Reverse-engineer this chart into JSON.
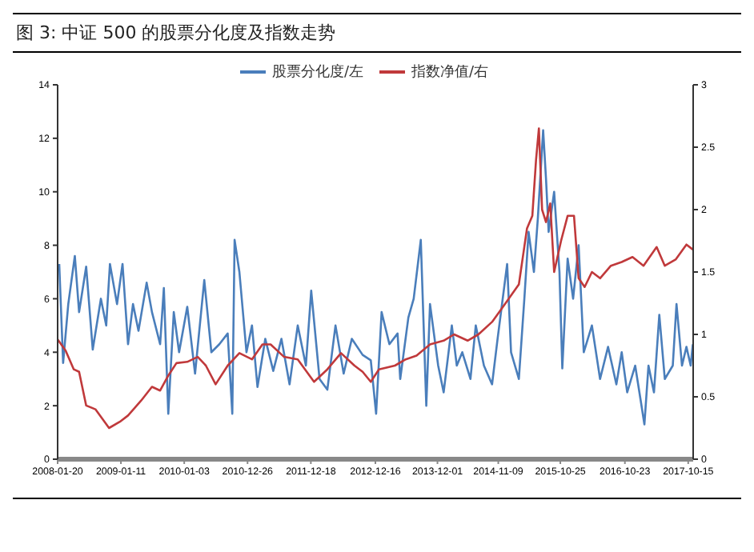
{
  "chart_data": {
    "type": "line",
    "title": "图 3:  中证 500 的股票分化度及指数走势",
    "legend": "top",
    "marker": "none",
    "line_style": "solid",
    "xlim": [
      "2008-01-20",
      "2017-11-12"
    ],
    "xticks": [
      "2008-01-20",
      "2009-01-11",
      "2010-01-03",
      "2010-12-26",
      "2011-12-18",
      "2012-12-16",
      "2013-12-01",
      "2014-11-09",
      "2015-10-25",
      "2016-10-23",
      "2017-10-15"
    ],
    "ylim": [
      0,
      14
    ],
    "yticks": [
      0,
      2,
      4,
      6,
      8,
      10,
      12,
      14
    ],
    "y2lim": [
      0,
      3
    ],
    "y2ticks": [
      0,
      0.5,
      1,
      1.5,
      2,
      2.5,
      3
    ],
    "series": [
      {
        "name": "股票分化度/左",
        "color": "#4a7ebb",
        "x": [
          "2008-01-29",
          "2008-02-20",
          "2008-03-20",
          "2008-04-26",
          "2008-05-20",
          "2008-06-29",
          "2008-08-05",
          "2008-09-20",
          "2008-10-20",
          "2008-11-10",
          "2008-12-20",
          "2009-01-20",
          "2009-02-20",
          "2009-03-20",
          "2009-04-20",
          "2009-06-05",
          "2009-07-05",
          "2009-08-20",
          "2009-09-10",
          "2009-10-05",
          "2009-11-05",
          "2009-12-05",
          "2010-01-20",
          "2010-03-05",
          "2010-04-26",
          "2010-06-05",
          "2010-07-20",
          "2010-09-05",
          "2010-10-01",
          "2010-10-14",
          "2010-11-10",
          "2010-12-20",
          "2011-01-20",
          "2011-02-20",
          "2011-04-05",
          "2011-05-20",
          "2011-07-05",
          "2011-08-20",
          "2011-10-05",
          "2011-11-20",
          "2011-12-20",
          "2012-02-05",
          "2012-03-20",
          "2012-05-05",
          "2012-06-20",
          "2012-08-05",
          "2012-10-05",
          "2012-11-20",
          "2012-12-20",
          "2013-01-20",
          "2013-03-05",
          "2013-04-20",
          "2013-05-05",
          "2013-06-20",
          "2013-07-20",
          "2013-08-29",
          "2013-09-29",
          "2013-10-20",
          "2013-12-05",
          "2014-01-05",
          "2014-02-20",
          "2014-03-20",
          "2014-04-20",
          "2014-06-05",
          "2014-07-05",
          "2014-08-20",
          "2014-10-05",
          "2014-11-05",
          "2014-12-29",
          "2015-01-20",
          "2015-03-05",
          "2015-04-05",
          "2015-04-29",
          "2015-05-29",
          "2015-06-20",
          "2015-07-20",
          "2015-08-05",
          "2015-08-20",
          "2015-09-20",
          "2015-10-20",
          "2015-11-05",
          "2015-12-05",
          "2016-01-05",
          "2016-02-05",
          "2016-03-05",
          "2016-04-20",
          "2016-06-05",
          "2016-07-20",
          "2016-09-05",
          "2016-10-05",
          "2016-11-05",
          "2016-12-20",
          "2017-01-20",
          "2017-02-10",
          "2017-03-05",
          "2017-04-05",
          "2017-05-05",
          "2017-06-05",
          "2017-07-20",
          "2017-08-10",
          "2017-09-10",
          "2017-10-05",
          "2017-10-29",
          "2017-11-10"
        ],
        "values": [
          7.3,
          3.6,
          5.8,
          7.6,
          5.5,
          7.2,
          4.1,
          6.0,
          5.0,
          7.3,
          5.8,
          7.3,
          4.3,
          5.8,
          4.8,
          6.6,
          5.5,
          4.3,
          6.4,
          1.7,
          5.5,
          4.0,
          5.7,
          3.2,
          6.7,
          4.0,
          4.3,
          4.7,
          1.7,
          8.2,
          7.0,
          4.0,
          5.0,
          2.7,
          4.5,
          3.3,
          4.5,
          2.8,
          5.0,
          3.5,
          6.3,
          3.0,
          2.6,
          5.0,
          3.2,
          4.5,
          3.9,
          3.7,
          1.7,
          5.5,
          4.3,
          4.7,
          3.0,
          5.3,
          6.0,
          8.2,
          2.0,
          5.8,
          3.5,
          2.5,
          5.0,
          3.5,
          4.0,
          3.0,
          5.0,
          3.5,
          2.8,
          4.5,
          7.3,
          4.0,
          3.0,
          6.0,
          8.5,
          7.0,
          9.0,
          12.3,
          10.5,
          8.5,
          10.0,
          7.0,
          3.4,
          7.5,
          6.0,
          8.0,
          4.0,
          5.0,
          3.0,
          4.2,
          2.8,
          4.0,
          2.5,
          3.5,
          2.2,
          1.3,
          3.5,
          2.5,
          5.4,
          3.0,
          3.5,
          5.8,
          3.5,
          4.2,
          3.5,
          4.3
        ]
      },
      {
        "name": "指数净值/右",
        "color": "#c0393b",
        "axis": "y2",
        "x": [
          "2008-01-20",
          "2008-03-05",
          "2008-04-20",
          "2008-05-20",
          "2008-06-29",
          "2008-08-20",
          "2008-11-05",
          "2009-01-05",
          "2009-02-20",
          "2009-05-05",
          "2009-07-05",
          "2009-08-20",
          "2009-10-05",
          "2009-11-20",
          "2010-01-20",
          "2010-03-20",
          "2010-05-05",
          "2010-06-29",
          "2010-09-05",
          "2010-11-10",
          "2011-01-20",
          "2011-03-20",
          "2011-05-05",
          "2011-07-20",
          "2011-10-05",
          "2012-01-05",
          "2012-03-20",
          "2012-06-05",
          "2012-08-20",
          "2012-10-05",
          "2012-11-20",
          "2013-01-05",
          "2013-04-05",
          "2013-06-05",
          "2013-08-05",
          "2013-10-20",
          "2014-01-05",
          "2014-03-05",
          "2014-05-20",
          "2014-07-20",
          "2014-10-05",
          "2014-12-20",
          "2015-03-05",
          "2015-04-20",
          "2015-05-20",
          "2015-06-10",
          "2015-06-26",
          "2015-07-14",
          "2015-08-05",
          "2015-08-29",
          "2015-09-20",
          "2015-10-29",
          "2015-12-05",
          "2016-01-10",
          "2016-02-05",
          "2016-03-10",
          "2016-04-20",
          "2016-06-05",
          "2016-08-05",
          "2016-10-05",
          "2016-12-05",
          "2017-02-05",
          "2017-04-20",
          "2017-06-05",
          "2017-08-05",
          "2017-10-05",
          "2017-11-10"
        ],
        "values": [
          0.96,
          0.87,
          0.72,
          0.7,
          0.43,
          0.4,
          0.25,
          0.3,
          0.35,
          0.47,
          0.58,
          0.55,
          0.67,
          0.77,
          0.78,
          0.82,
          0.75,
          0.6,
          0.75,
          0.85,
          0.8,
          0.92,
          0.92,
          0.82,
          0.8,
          0.62,
          0.72,
          0.85,
          0.75,
          0.7,
          0.62,
          0.72,
          0.75,
          0.8,
          0.83,
          0.92,
          0.95,
          1.0,
          0.95,
          1.0,
          1.1,
          1.25,
          1.4,
          1.85,
          1.95,
          2.4,
          2.65,
          2.0,
          1.9,
          2.05,
          1.5,
          1.75,
          1.95,
          1.95,
          1.45,
          1.38,
          1.5,
          1.45,
          1.55,
          1.58,
          1.62,
          1.55,
          1.7,
          1.55,
          1.6,
          1.72,
          1.68
        ]
      }
    ]
  }
}
